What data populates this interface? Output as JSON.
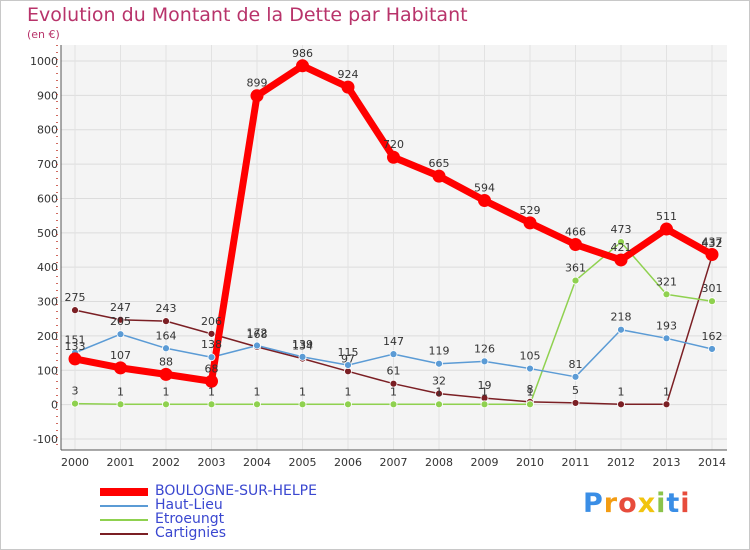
{
  "title": "Evolution du Montant de la Dette par Habitant",
  "unit": "(en €)",
  "logo": {
    "text": "Proxiti",
    "letters": [
      "P",
      "r",
      "o",
      "x",
      "i",
      "t",
      "i"
    ],
    "colors": [
      "#3a8ee6",
      "#f39c12",
      "#e74c3c",
      "#f1c40f",
      "#8bc34a",
      "#3a8ee6",
      "#e74c3c"
    ]
  },
  "chart_data": {
    "type": "line",
    "title": "Evolution du Montant de la Dette par Habitant",
    "ylabel": "(en €)",
    "xlabel": "",
    "categories": [
      "2000",
      "2001",
      "2002",
      "2003",
      "2004",
      "2005",
      "2006",
      "2007",
      "2008",
      "2009",
      "2010",
      "2011",
      "2012",
      "2013",
      "2014"
    ],
    "yticks": [
      "-100",
      "0",
      "100",
      "200",
      "300",
      "400",
      "500",
      "600",
      "700",
      "800",
      "900",
      "1000"
    ],
    "ylim": [
      -100,
      1000
    ],
    "grid": true,
    "legend_position": "bottom-left",
    "series": [
      {
        "name": "BOULOGNE-SUR-HELPE",
        "color": "#ff0000",
        "values": [
          133,
          107,
          88,
          68,
          899,
          986,
          924,
          720,
          665,
          594,
          529,
          466,
          421,
          511,
          437
        ],
        "labels": [
          "133",
          "107",
          "88",
          "68",
          "899",
          "986",
          "924",
          "720",
          "665",
          "594",
          "529",
          "466",
          "421",
          "511",
          "437"
        ]
      },
      {
        "name": "Haut-Lieu",
        "color": "#5b9bd5",
        "values": [
          151,
          205,
          164,
          138,
          172,
          139,
          115,
          147,
          119,
          126,
          105,
          81,
          218,
          193,
          162
        ],
        "labels": [
          "151",
          "205",
          "164",
          "138",
          "172",
          "139",
          "115",
          "147",
          "119",
          "126",
          "105",
          "81",
          "218",
          "193",
          "162"
        ]
      },
      {
        "name": "Etroeungt",
        "color": "#8fd14f",
        "values": [
          3,
          1,
          1,
          1,
          1,
          1,
          1,
          1,
          1,
          1,
          1,
          361,
          473,
          321,
          301
        ],
        "labels": [
          "3",
          "1",
          "1",
          "1",
          "1",
          "1",
          "1",
          "1",
          "1",
          "1",
          "1",
          "361",
          "473",
          "321",
          "301"
        ]
      },
      {
        "name": "Cartignies",
        "color": "#7b1f24",
        "values": [
          275,
          247,
          243,
          206,
          168,
          134,
          97,
          61,
          32,
          19,
          8,
          5,
          1,
          1,
          432
        ],
        "labels": [
          "275",
          "247",
          "243",
          "206",
          "168",
          "134",
          "97",
          "61",
          "32",
          "19",
          "8",
          "5",
          "1",
          "1",
          "432"
        ]
      }
    ]
  }
}
